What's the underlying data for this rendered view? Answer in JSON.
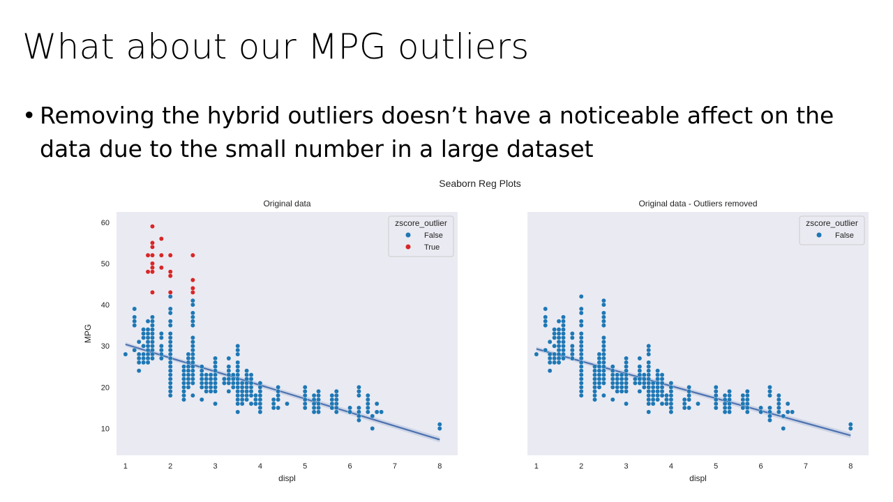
{
  "slide": {
    "title": "What about our MPG outliers",
    "bullet": "Removing the hybrid outliers doesn’t have a noticeable affect on the data due to the small number in a large dataset",
    "bullet_symbol": "•"
  },
  "figure": {
    "suptitle": "Seaborn Reg Plots",
    "colors": {
      "axes_bg": "#eaeaf2",
      "false": "#1f77b4",
      "true": "#d62728",
      "reg": "#4c72b0"
    }
  },
  "chart_data": [
    {
      "type": "scatter",
      "title": "Original data",
      "xlabel": "displ",
      "ylabel": "MPG",
      "xlim": [
        0.8,
        8.4
      ],
      "ylim": [
        3.5,
        62.5
      ],
      "xticks": [
        1,
        2,
        3,
        4,
        5,
        6,
        7,
        8
      ],
      "yticks": [
        10,
        20,
        30,
        40,
        50,
        60
      ],
      "grid": false,
      "legend": {
        "title": "zscore_outlier",
        "placement": "top-right",
        "entries": [
          "False",
          "True"
        ]
      },
      "regression": {
        "x": [
          1,
          8
        ],
        "y": [
          30.4,
          7.3
        ]
      },
      "series": [
        {
          "name": "False",
          "color": "#1f77b4",
          "points": [
            [
              1.0,
              28
            ],
            [
              1.2,
              39
            ],
            [
              1.2,
              37
            ],
            [
              1.2,
              36
            ],
            [
              1.2,
              35
            ],
            [
              1.2,
              29
            ],
            [
              1.3,
              31
            ],
            [
              1.3,
              28
            ],
            [
              1.3,
              27
            ],
            [
              1.3,
              26
            ],
            [
              1.3,
              24
            ],
            [
              1.4,
              34
            ],
            [
              1.4,
              33
            ],
            [
              1.4,
              32
            ],
            [
              1.4,
              30
            ],
            [
              1.4,
              28
            ],
            [
              1.4,
              27
            ],
            [
              1.4,
              26
            ],
            [
              1.5,
              36
            ],
            [
              1.5,
              34
            ],
            [
              1.5,
              33
            ],
            [
              1.5,
              32
            ],
            [
              1.5,
              31
            ],
            [
              1.5,
              30
            ],
            [
              1.5,
              29
            ],
            [
              1.5,
              28
            ],
            [
              1.5,
              27
            ],
            [
              1.5,
              26
            ],
            [
              1.6,
              37
            ],
            [
              1.6,
              36
            ],
            [
              1.6,
              35
            ],
            [
              1.6,
              34
            ],
            [
              1.6,
              33
            ],
            [
              1.6,
              32
            ],
            [
              1.6,
              31
            ],
            [
              1.6,
              30
            ],
            [
              1.6,
              29
            ],
            [
              1.6,
              28
            ],
            [
              1.6,
              27
            ],
            [
              1.8,
              33
            ],
            [
              1.8,
              32
            ],
            [
              1.8,
              30
            ],
            [
              1.8,
              29
            ],
            [
              1.8,
              28
            ],
            [
              1.8,
              27
            ],
            [
              2.0,
              42
            ],
            [
              2.0,
              39
            ],
            [
              2.0,
              38
            ],
            [
              2.0,
              36
            ],
            [
              2.0,
              35
            ],
            [
              2.0,
              33
            ],
            [
              2.0,
              32
            ],
            [
              2.0,
              31
            ],
            [
              2.0,
              30
            ],
            [
              2.0,
              29
            ],
            [
              2.0,
              28
            ],
            [
              2.0,
              27
            ],
            [
              2.0,
              26
            ],
            [
              2.0,
              25
            ],
            [
              2.0,
              24
            ],
            [
              2.0,
              23
            ],
            [
              2.0,
              22
            ],
            [
              2.0,
              21
            ],
            [
              2.0,
              20
            ],
            [
              2.0,
              19
            ],
            [
              2.0,
              18
            ],
            [
              2.3,
              25
            ],
            [
              2.3,
              24
            ],
            [
              2.3,
              23
            ],
            [
              2.3,
              22
            ],
            [
              2.3,
              21
            ],
            [
              2.3,
              20
            ],
            [
              2.3,
              19
            ],
            [
              2.3,
              18
            ],
            [
              2.3,
              17
            ],
            [
              2.4,
              28
            ],
            [
              2.4,
              27
            ],
            [
              2.4,
              26
            ],
            [
              2.4,
              25
            ],
            [
              2.4,
              24
            ],
            [
              2.4,
              23
            ],
            [
              2.4,
              22
            ],
            [
              2.4,
              21
            ],
            [
              2.4,
              20
            ],
            [
              2.5,
              41
            ],
            [
              2.5,
              40
            ],
            [
              2.5,
              38
            ],
            [
              2.5,
              37
            ],
            [
              2.5,
              36
            ],
            [
              2.5,
              35
            ],
            [
              2.5,
              32
            ],
            [
              2.5,
              31
            ],
            [
              2.5,
              30
            ],
            [
              2.5,
              29
            ],
            [
              2.5,
              28
            ],
            [
              2.5,
              27
            ],
            [
              2.5,
              26
            ],
            [
              2.5,
              25
            ],
            [
              2.5,
              24
            ],
            [
              2.5,
              23
            ],
            [
              2.5,
              22
            ],
            [
              2.5,
              21
            ],
            [
              2.5,
              18
            ],
            [
              2.7,
              25
            ],
            [
              2.7,
              24
            ],
            [
              2.7,
              23
            ],
            [
              2.7,
              22
            ],
            [
              2.7,
              21
            ],
            [
              2.7,
              20
            ],
            [
              2.7,
              17
            ],
            [
              2.8,
              23
            ],
            [
              2.8,
              22
            ],
            [
              2.8,
              21
            ],
            [
              2.8,
              20
            ],
            [
              2.8,
              19
            ],
            [
              2.9,
              23
            ],
            [
              2.9,
              22
            ],
            [
              2.9,
              21
            ],
            [
              2.9,
              20
            ],
            [
              2.9,
              19
            ],
            [
              3.0,
              27
            ],
            [
              3.0,
              26
            ],
            [
              3.0,
              25
            ],
            [
              3.0,
              24
            ],
            [
              3.0,
              23
            ],
            [
              3.0,
              22
            ],
            [
              3.0,
              21
            ],
            [
              3.0,
              20
            ],
            [
              3.0,
              19
            ],
            [
              3.0,
              16
            ],
            [
              3.2,
              22
            ],
            [
              3.2,
              21
            ],
            [
              3.3,
              27
            ],
            [
              3.3,
              25
            ],
            [
              3.3,
              24
            ],
            [
              3.3,
              23
            ],
            [
              3.3,
              22
            ],
            [
              3.3,
              21
            ],
            [
              3.3,
              19
            ],
            [
              3.4,
              23
            ],
            [
              3.4,
              22
            ],
            [
              3.4,
              21
            ],
            [
              3.4,
              20
            ],
            [
              3.5,
              30
            ],
            [
              3.5,
              29
            ],
            [
              3.5,
              28
            ],
            [
              3.5,
              26
            ],
            [
              3.5,
              25
            ],
            [
              3.5,
              24
            ],
            [
              3.5,
              23
            ],
            [
              3.5,
              22
            ],
            [
              3.5,
              21
            ],
            [
              3.5,
              20
            ],
            [
              3.5,
              19
            ],
            [
              3.5,
              18
            ],
            [
              3.5,
              17
            ],
            [
              3.5,
              16
            ],
            [
              3.5,
              14
            ],
            [
              3.6,
              21
            ],
            [
              3.6,
              20
            ],
            [
              3.6,
              19
            ],
            [
              3.6,
              18
            ],
            [
              3.6,
              17
            ],
            [
              3.6,
              16
            ],
            [
              3.7,
              24
            ],
            [
              3.7,
              23
            ],
            [
              3.7,
              22
            ],
            [
              3.7,
              21
            ],
            [
              3.7,
              20
            ],
            [
              3.7,
              19
            ],
            [
              3.7,
              18
            ],
            [
              3.7,
              17
            ],
            [
              3.8,
              23
            ],
            [
              3.8,
              22
            ],
            [
              3.8,
              21
            ],
            [
              3.8,
              20
            ],
            [
              3.8,
              19
            ],
            [
              3.8,
              18
            ],
            [
              3.8,
              16
            ],
            [
              3.9,
              18
            ],
            [
              3.9,
              17
            ],
            [
              3.9,
              16
            ],
            [
              4.0,
              21
            ],
            [
              4.0,
              20
            ],
            [
              4.0,
              19
            ],
            [
              4.0,
              18
            ],
            [
              4.0,
              17
            ],
            [
              4.0,
              16
            ],
            [
              4.0,
              15
            ],
            [
              4.0,
              14
            ],
            [
              4.3,
              17
            ],
            [
              4.3,
              16
            ],
            [
              4.3,
              15
            ],
            [
              4.4,
              20
            ],
            [
              4.4,
              19
            ],
            [
              4.4,
              18
            ],
            [
              4.4,
              17
            ],
            [
              4.4,
              15
            ],
            [
              4.6,
              16
            ],
            [
              5.0,
              20
            ],
            [
              5.0,
              19
            ],
            [
              5.0,
              18
            ],
            [
              5.0,
              17
            ],
            [
              5.0,
              16
            ],
            [
              5.0,
              15
            ],
            [
              5.2,
              18
            ],
            [
              5.2,
              17
            ],
            [
              5.2,
              16
            ],
            [
              5.2,
              15
            ],
            [
              5.2,
              14
            ],
            [
              5.3,
              19
            ],
            [
              5.3,
              18
            ],
            [
              5.3,
              17
            ],
            [
              5.3,
              16
            ],
            [
              5.3,
              15
            ],
            [
              5.3,
              14
            ],
            [
              5.6,
              18
            ],
            [
              5.6,
              17
            ],
            [
              5.6,
              16
            ],
            [
              5.6,
              15
            ],
            [
              5.7,
              19
            ],
            [
              5.7,
              18
            ],
            [
              5.7,
              17
            ],
            [
              5.7,
              16
            ],
            [
              5.7,
              15
            ],
            [
              5.7,
              14
            ],
            [
              6.0,
              15
            ],
            [
              6.0,
              14
            ],
            [
              6.2,
              20
            ],
            [
              6.2,
              19
            ],
            [
              6.2,
              18
            ],
            [
              6.2,
              15
            ],
            [
              6.2,
              14
            ],
            [
              6.2,
              13
            ],
            [
              6.2,
              12
            ],
            [
              6.4,
              18
            ],
            [
              6.4,
              17
            ],
            [
              6.4,
              16
            ],
            [
              6.4,
              15
            ],
            [
              6.4,
              14
            ],
            [
              6.5,
              13
            ],
            [
              6.5,
              10
            ],
            [
              6.6,
              16
            ],
            [
              6.6,
              14
            ],
            [
              6.7,
              14
            ],
            [
              8.0,
              11
            ],
            [
              8.0,
              10
            ]
          ]
        },
        {
          "name": "True",
          "color": "#d62728",
          "points": [
            [
              1.5,
              52
            ],
            [
              1.5,
              48
            ],
            [
              1.6,
              59
            ],
            [
              1.6,
              55
            ],
            [
              1.6,
              54
            ],
            [
              1.6,
              52
            ],
            [
              1.6,
              50
            ],
            [
              1.6,
              49
            ],
            [
              1.6,
              48
            ],
            [
              1.6,
              43
            ],
            [
              1.8,
              56
            ],
            [
              1.8,
              52
            ],
            [
              1.8,
              49
            ],
            [
              2.0,
              52
            ],
            [
              2.0,
              48
            ],
            [
              2.0,
              47
            ],
            [
              2.0,
              43
            ],
            [
              2.5,
              52
            ],
            [
              2.5,
              46
            ],
            [
              2.5,
              44
            ],
            [
              2.5,
              43
            ]
          ]
        }
      ]
    },
    {
      "type": "scatter",
      "title": "Original data - Outliers removed",
      "xlabel": "displ",
      "ylabel": "",
      "xlim": [
        0.8,
        8.4
      ],
      "ylim": [
        3.5,
        62.5
      ],
      "xticks": [
        1,
        2,
        3,
        4,
        5,
        6,
        7,
        8
      ],
      "yticks": [],
      "grid": false,
      "legend": {
        "title": "zscore_outlier",
        "placement": "top-right",
        "entries": [
          "False"
        ]
      },
      "regression": {
        "x": [
          1,
          8
        ],
        "y": [
          29.3,
          8.3
        ]
      },
      "series": [
        {
          "name": "False",
          "color": "#1f77b4",
          "points_ref": "same as Original data False series"
        }
      ]
    }
  ]
}
